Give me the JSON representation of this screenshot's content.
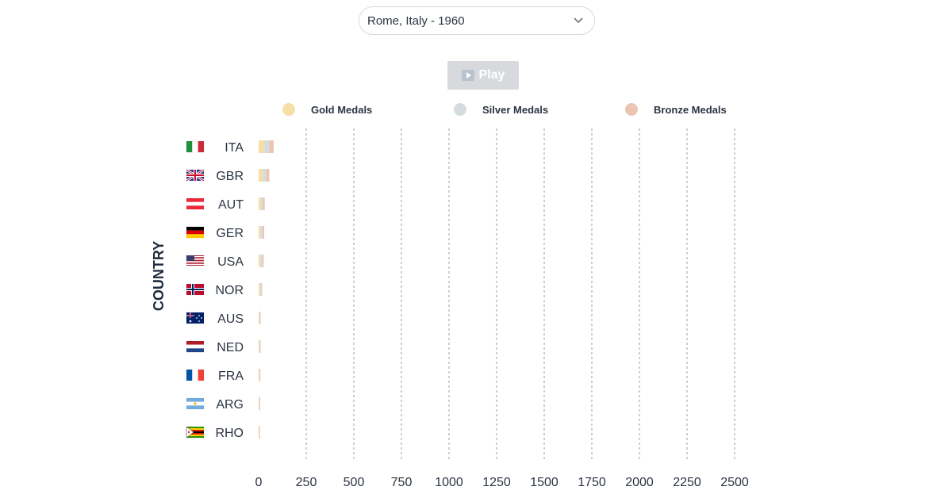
{
  "selector": {
    "value": "Rome, Italy - 1960",
    "icon": "chevron-down-icon"
  },
  "play_button": {
    "label": "Play",
    "icon": "play-icon"
  },
  "legend": [
    {
      "label": "Gold Medals",
      "color": "#f7dea6"
    },
    {
      "label": "Silver Medals",
      "color": "#d5dcdf"
    },
    {
      "label": "Bronze Medals",
      "color": "#ecc4b2"
    }
  ],
  "chart_data": {
    "type": "bar",
    "orientation": "horizontal",
    "stacked": true,
    "ylabel": "COUNTRY",
    "xlabel": "",
    "xlim": [
      0,
      2500
    ],
    "xticks": [
      0,
      250,
      500,
      750,
      1000,
      1250,
      1500,
      1750,
      2000,
      2250,
      2500
    ],
    "grid": "vertical dashed",
    "categories": [
      "ITA",
      "GBR",
      "AUT",
      "GER",
      "USA",
      "NOR",
      "AUS",
      "NED",
      "FRA",
      "ARG",
      "RHO"
    ],
    "series": [
      {
        "name": "Gold Medals",
        "color": "#f7dea6",
        "values": [
          30,
          22,
          12,
          10,
          9,
          7,
          3,
          3,
          3,
          2,
          2
        ]
      },
      {
        "name": "Silver Medals",
        "color": "#d5dcdf",
        "values": [
          25,
          18,
          10,
          10,
          9,
          6,
          3,
          3,
          2,
          2,
          1
        ]
      },
      {
        "name": "Bronze Medals",
        "color": "#ecc4b2",
        "values": [
          24,
          16,
          10,
          9,
          8,
          5,
          3,
          3,
          2,
          2,
          1
        ]
      }
    ],
    "flags": [
      "flag-italy",
      "flag-uk",
      "flag-austria",
      "flag-germany",
      "flag-usa",
      "flag-norway",
      "flag-australia",
      "flag-netherlands",
      "flag-france",
      "flag-argentina",
      "flag-rhodesia"
    ]
  }
}
